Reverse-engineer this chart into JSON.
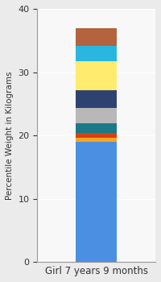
{
  "category": "Girl 7 years 9 months",
  "segments": [
    {
      "value": 19.0,
      "color": "#4B8FE2"
    },
    {
      "value": 0.6,
      "color": "#F5A623"
    },
    {
      "value": 0.8,
      "color": "#D94010"
    },
    {
      "value": 1.5,
      "color": "#1A7A8A"
    },
    {
      "value": 2.5,
      "color": "#B8B8B8"
    },
    {
      "value": 2.8,
      "color": "#2E4272"
    },
    {
      "value": 4.5,
      "color": "#FFEC6E"
    },
    {
      "value": 2.5,
      "color": "#29B7E0"
    },
    {
      "value": 2.8,
      "color": "#B5623E"
    }
  ],
  "ylabel": "Percentile Weight in Kilograms",
  "ylim": [
    0,
    40
  ],
  "yticks": [
    0,
    10,
    20,
    30,
    40
  ],
  "bg_left": "#E8E8E8",
  "bg_right": "#F5F5F5",
  "text_color": "#333333",
  "ylabel_fontsize": 7.5,
  "xlabel_fontsize": 8.5,
  "bar_width": 0.35
}
